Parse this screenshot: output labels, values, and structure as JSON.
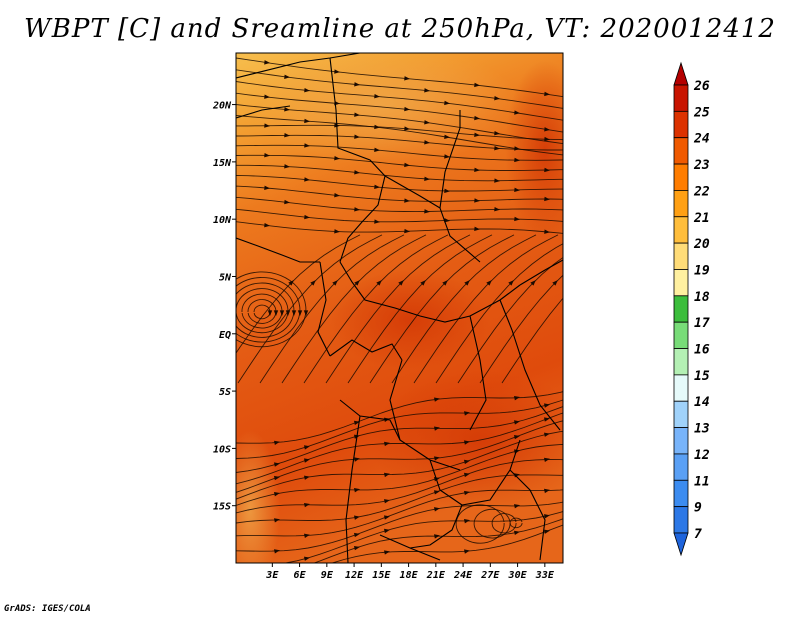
{
  "title": "WBPT [C] and Sreamline at 250hPa, VT: 2020012412",
  "footer": "GrADS: IGES/COLA",
  "map": {
    "lon_range": [
      -1,
      35
    ],
    "lat_range": [
      -20,
      24.5
    ],
    "lon_ticks": [
      "3E",
      "6E",
      "9E",
      "12E",
      "15E",
      "18E",
      "21E",
      "24E",
      "27E",
      "30E",
      "33E"
    ],
    "lon_tick_values": [
      3,
      6,
      9,
      12,
      15,
      18,
      21,
      24,
      27,
      30,
      33
    ],
    "lat_ticks": [
      "20N",
      "15N",
      "10N",
      "5N",
      "EQ",
      "5S",
      "10S",
      "15S"
    ],
    "lat_tick_values": [
      20,
      15,
      10,
      5,
      0,
      -5,
      -10,
      -15
    ],
    "overlay": "streamlines",
    "boundaries": "country borders"
  },
  "colorbar": {
    "labels": [
      "7",
      "9",
      "11",
      "12",
      "13",
      "14",
      "15",
      "16",
      "17",
      "18",
      "19",
      "20",
      "21",
      "22",
      "23",
      "24",
      "25",
      "26"
    ],
    "colors": [
      "#1e64dc",
      "#2d78e6",
      "#3c8cf0",
      "#5aa0f5",
      "#78b4fa",
      "#a0d2fa",
      "#e6fafa",
      "#b4f0b4",
      "#78dc78",
      "#3cbe3c",
      "#fff0a0",
      "#ffdc78",
      "#ffbe3c",
      "#ffa014",
      "#ff7d00",
      "#f05a00",
      "#dc3200",
      "#c81400",
      "#b40000"
    ],
    "extend": "both"
  }
}
